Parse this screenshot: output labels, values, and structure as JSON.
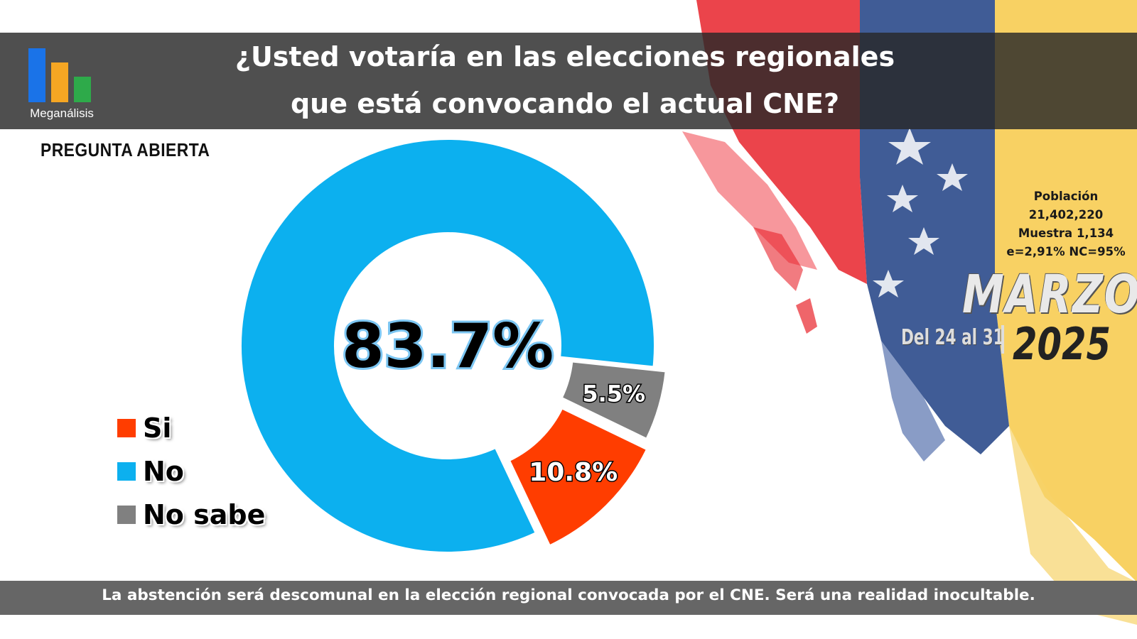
{
  "header": {
    "logo_text": "Meganálisis",
    "title_line1": "¿Usted votaría en las elecciones regionales",
    "title_line2": "que está convocando el actual CNE?"
  },
  "subtitle": "PREGUNTA ABIERTA",
  "stats": {
    "poblacion_label": "Población",
    "poblacion_value": "21,402,220",
    "muestra": "Muestra 1,134",
    "error_nc": "e=2,91%  NC=95%"
  },
  "period": {
    "month": "MARZO",
    "range": "Del 24 al 31",
    "year": "2025"
  },
  "legend": [
    {
      "label": "Si",
      "color": "#ff3d00"
    },
    {
      "label": "No",
      "color": "#0cb0ef"
    },
    {
      "label": "No sabe",
      "color": "#808080"
    }
  ],
  "chart_data": {
    "type": "pie",
    "donut": true,
    "categories": [
      "Si",
      "No",
      "No sabe"
    ],
    "values": [
      10.8,
      83.7,
      5.5
    ],
    "labels": [
      "10.8%",
      "83.7%",
      "5.5%"
    ],
    "colors": [
      "#ff3d00",
      "#0cb0ef",
      "#808080"
    ],
    "center_label": "83.7%",
    "legend_position": "bottom-left"
  },
  "footer": {
    "text": "La abstención será descomunal en la elección regional convocada por el CNE. Será una realidad inocultable."
  }
}
